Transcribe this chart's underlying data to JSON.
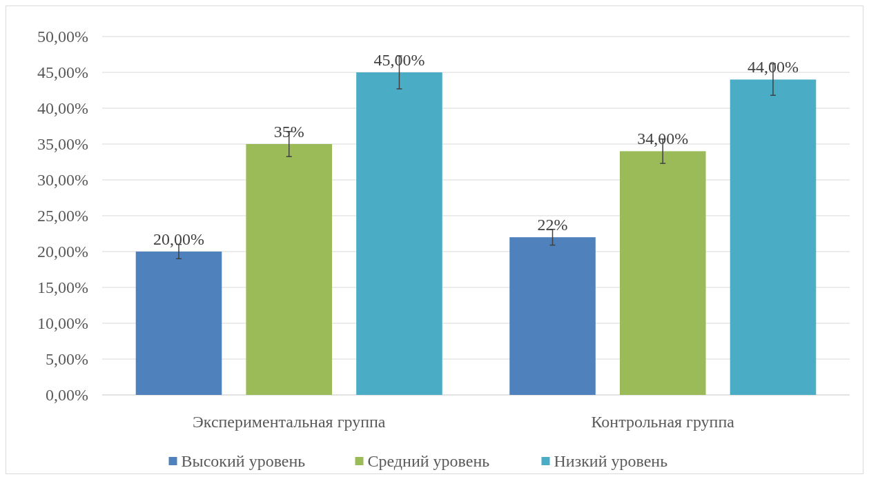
{
  "chart_data": {
    "type": "bar",
    "categories": [
      "Экспериментальная группа",
      "Контрольная группа"
    ],
    "series": [
      {
        "name": "Высокий уровень",
        "color": "#4f81bd",
        "values": [
          20,
          22
        ],
        "errors": [
          1,
          1.1
        ],
        "value_labels": [
          "20,00%",
          "22%"
        ]
      },
      {
        "name": "Средний уровень",
        "color": "#9bbb59",
        "values": [
          35,
          34
        ],
        "errors": [
          1.75,
          1.7
        ],
        "value_labels": [
          "35%",
          "34,00%"
        ]
      },
      {
        "name": "Низкий уровень",
        "color": "#4bacc6",
        "values": [
          45,
          44
        ],
        "errors": [
          2.3,
          2.2
        ],
        "value_labels": [
          "45,00%",
          "44,00%"
        ]
      }
    ],
    "ylim": [
      0,
      50
    ],
    "yticks": [
      {
        "value": 0,
        "label": "0,00%"
      },
      {
        "value": 5,
        "label": "5,00%"
      },
      {
        "value": 10,
        "label": "10,00%"
      },
      {
        "value": 15,
        "label": "15,00%"
      },
      {
        "value": 20,
        "label": "20,00%"
      },
      {
        "value": 25,
        "label": "25,00%"
      },
      {
        "value": 30,
        "label": "30,00%"
      },
      {
        "value": 35,
        "label": "35,00%"
      },
      {
        "value": 40,
        "label": "40,00%"
      },
      {
        "value": 45,
        "label": "45,00%"
      },
      {
        "value": 50,
        "label": "50,00%"
      }
    ],
    "grid": "y",
    "legend": "bottom"
  }
}
